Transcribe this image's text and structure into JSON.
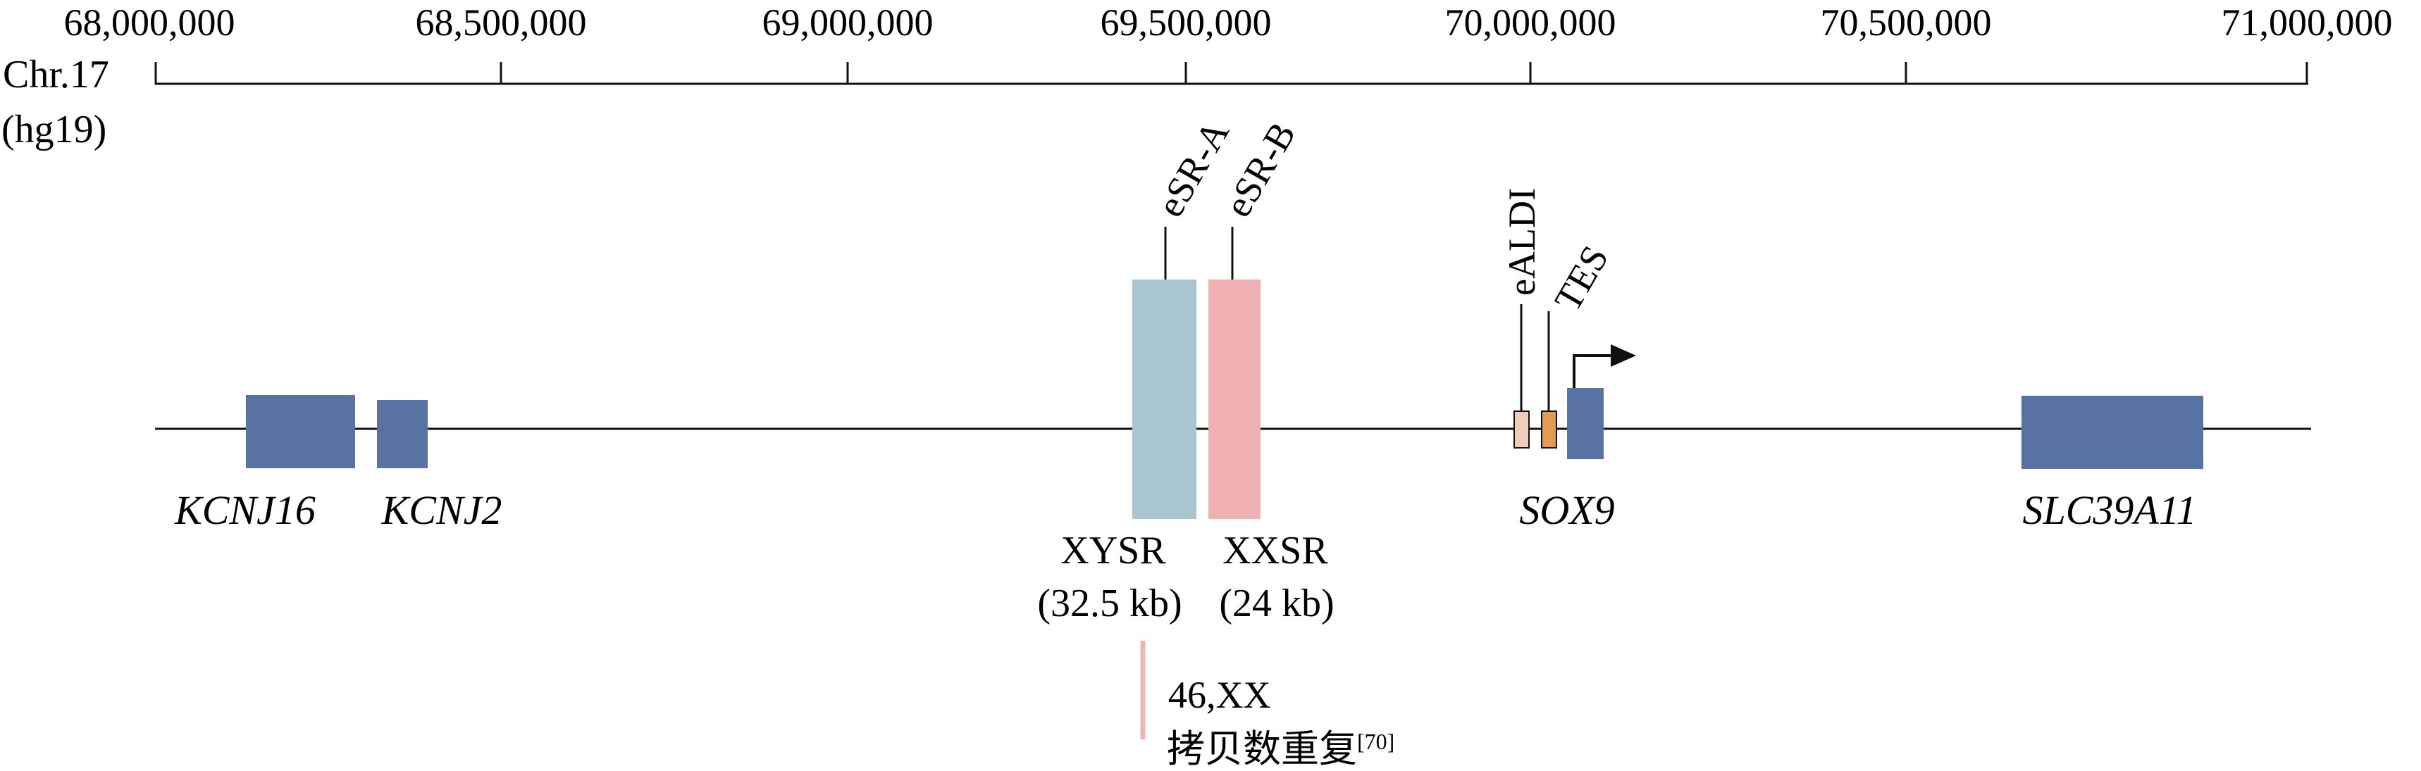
{
  "axis": {
    "chromosome_label": "Chr.17",
    "assembly_label": "(hg19)",
    "ticks": [
      "68,000,000",
      "68,500,000",
      "69,000,000",
      "69,500,000",
      "70,000,000",
      "70,500,000",
      "71,000,000"
    ]
  },
  "genes": [
    {
      "label": "KCNJ16"
    },
    {
      "label": "KCNJ2"
    },
    {
      "label": "SOX9"
    },
    {
      "label": "SLC39A11"
    }
  ],
  "regions": {
    "xysr": {
      "name": "XYSR",
      "size": "(32.5 kb)"
    },
    "xxsr": {
      "name": "XXSR",
      "size": "(24 kb)"
    }
  },
  "elements": {
    "esr_a": "eSR-A",
    "esr_b": "eSR-B",
    "ealdi": "eALDI",
    "tes": "TES"
  },
  "note": {
    "karyotype": "46,XX",
    "description": "拷贝数重复",
    "reference": "[70]"
  },
  "colors": {
    "gene_blue": "#5872a3",
    "xysr_blue": "#a8c5d1",
    "xxsr_pink": "#efb0b2",
    "ealdi_beige": "#edcdb8",
    "tes_orange": "#e49a52",
    "dup_pink": "#eeb4b6",
    "line": "#111111"
  }
}
